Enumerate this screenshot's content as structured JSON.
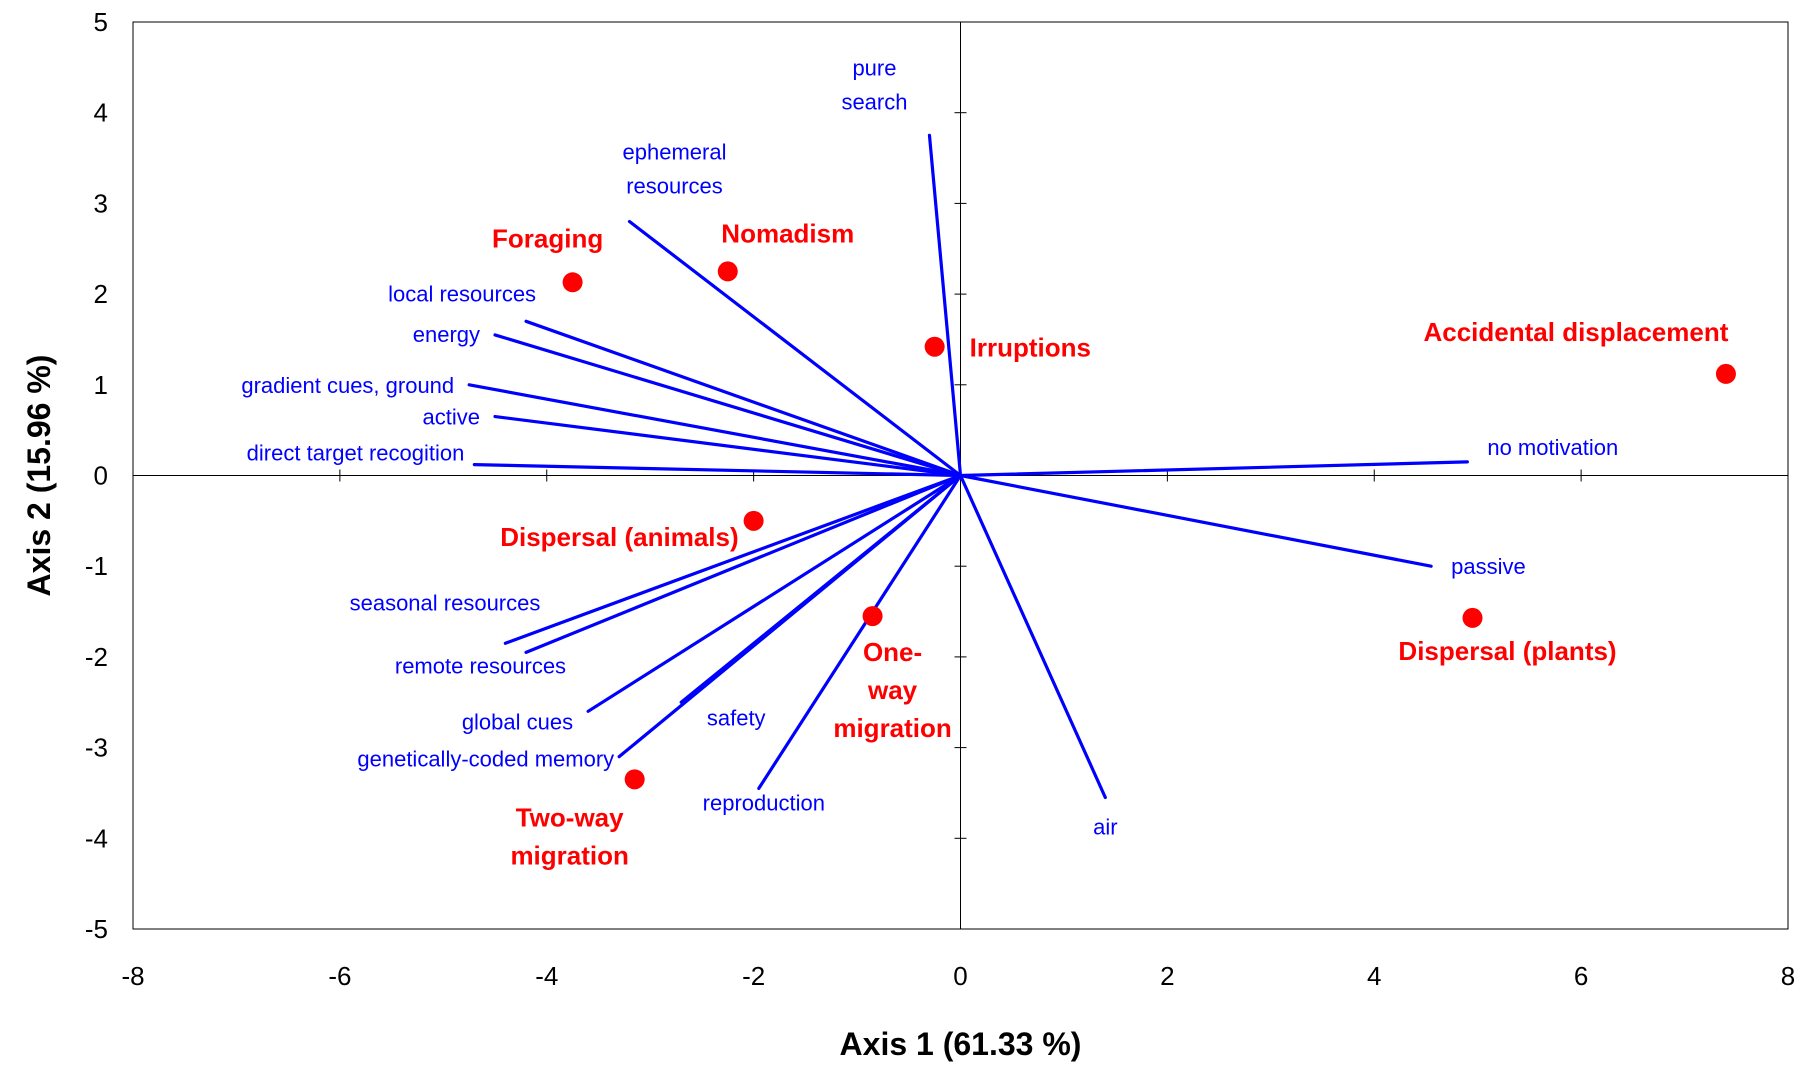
{
  "chart_data": {
    "type": "scatter",
    "title": "",
    "xlabel": "Axis 1 (61.33 %)",
    "ylabel": "Axis 2 (15.96 %)",
    "xlim": [
      -8,
      8
    ],
    "ylim": [
      -5,
      5
    ],
    "xticks": [
      "-8",
      "-6",
      "-4",
      "-2",
      "0",
      "2",
      "4",
      "6",
      "8"
    ],
    "yticks": [
      "5",
      "4",
      "3",
      "2",
      "1",
      "0",
      "-1",
      "-2",
      "-3",
      "-4",
      "-5"
    ],
    "grid": false,
    "colors": {
      "vectors": "#0000ff",
      "points": "#ff0000",
      "axes": "#000000"
    },
    "vectors": [
      {
        "label": [
          "pure",
          "search"
        ],
        "x": -0.3,
        "y": 3.75
      },
      {
        "label": [
          "ephemeral",
          "resources"
        ],
        "x": -3.2,
        "y": 2.8
      },
      {
        "label": [
          "local resources"
        ],
        "x": -4.2,
        "y": 1.7
      },
      {
        "label": [
          "energy"
        ],
        "x": -4.5,
        "y": 1.55
      },
      {
        "label": [
          "gradient cues, ground"
        ],
        "x": -4.75,
        "y": 1.0
      },
      {
        "label": [
          "active"
        ],
        "x": -4.5,
        "y": 0.65
      },
      {
        "label": [
          "direct target recogition"
        ],
        "x": -4.7,
        "y": 0.12
      },
      {
        "label": [
          "seasonal resources"
        ],
        "x": -4.4,
        "y": -1.85
      },
      {
        "label": [
          "remote resources"
        ],
        "x": -4.2,
        "y": -1.95
      },
      {
        "label": [
          "global cues"
        ],
        "x": -3.6,
        "y": -2.6
      },
      {
        "label": [
          "genetically-coded memory"
        ],
        "x": -3.3,
        "y": -3.1
      },
      {
        "label": [
          "safety"
        ],
        "x": -2.7,
        "y": -2.5
      },
      {
        "label": [
          "reproduction"
        ],
        "x": -1.95,
        "y": -3.45
      },
      {
        "label": [
          "air"
        ],
        "x": 1.4,
        "y": -3.55
      },
      {
        "label": [
          "passive"
        ],
        "x": 4.55,
        "y": -1.0
      },
      {
        "label": [
          "no motivation"
        ],
        "x": 4.9,
        "y": 0.15
      }
    ],
    "points": [
      {
        "label": [
          "Foraging"
        ],
        "x": -3.75,
        "y": 2.13
      },
      {
        "label": [
          "Nomadism"
        ],
        "x": -2.25,
        "y": 2.25
      },
      {
        "label": [
          "Irruptions"
        ],
        "x": -0.25,
        "y": 1.42
      },
      {
        "label": [
          "Accidental displacement"
        ],
        "x": 7.4,
        "y": 1.12
      },
      {
        "label": [
          "Dispersal (animals)"
        ],
        "x": -2.0,
        "y": -0.5
      },
      {
        "label": [
          "One-",
          "way",
          "migration"
        ],
        "x": -0.85,
        "y": -1.55
      },
      {
        "label": [
          "Dispersal (plants)"
        ],
        "x": 4.95,
        "y": -1.57
      },
      {
        "label": [
          "Two-way",
          "migration"
        ],
        "x": -3.15,
        "y": -3.35
      }
    ]
  }
}
